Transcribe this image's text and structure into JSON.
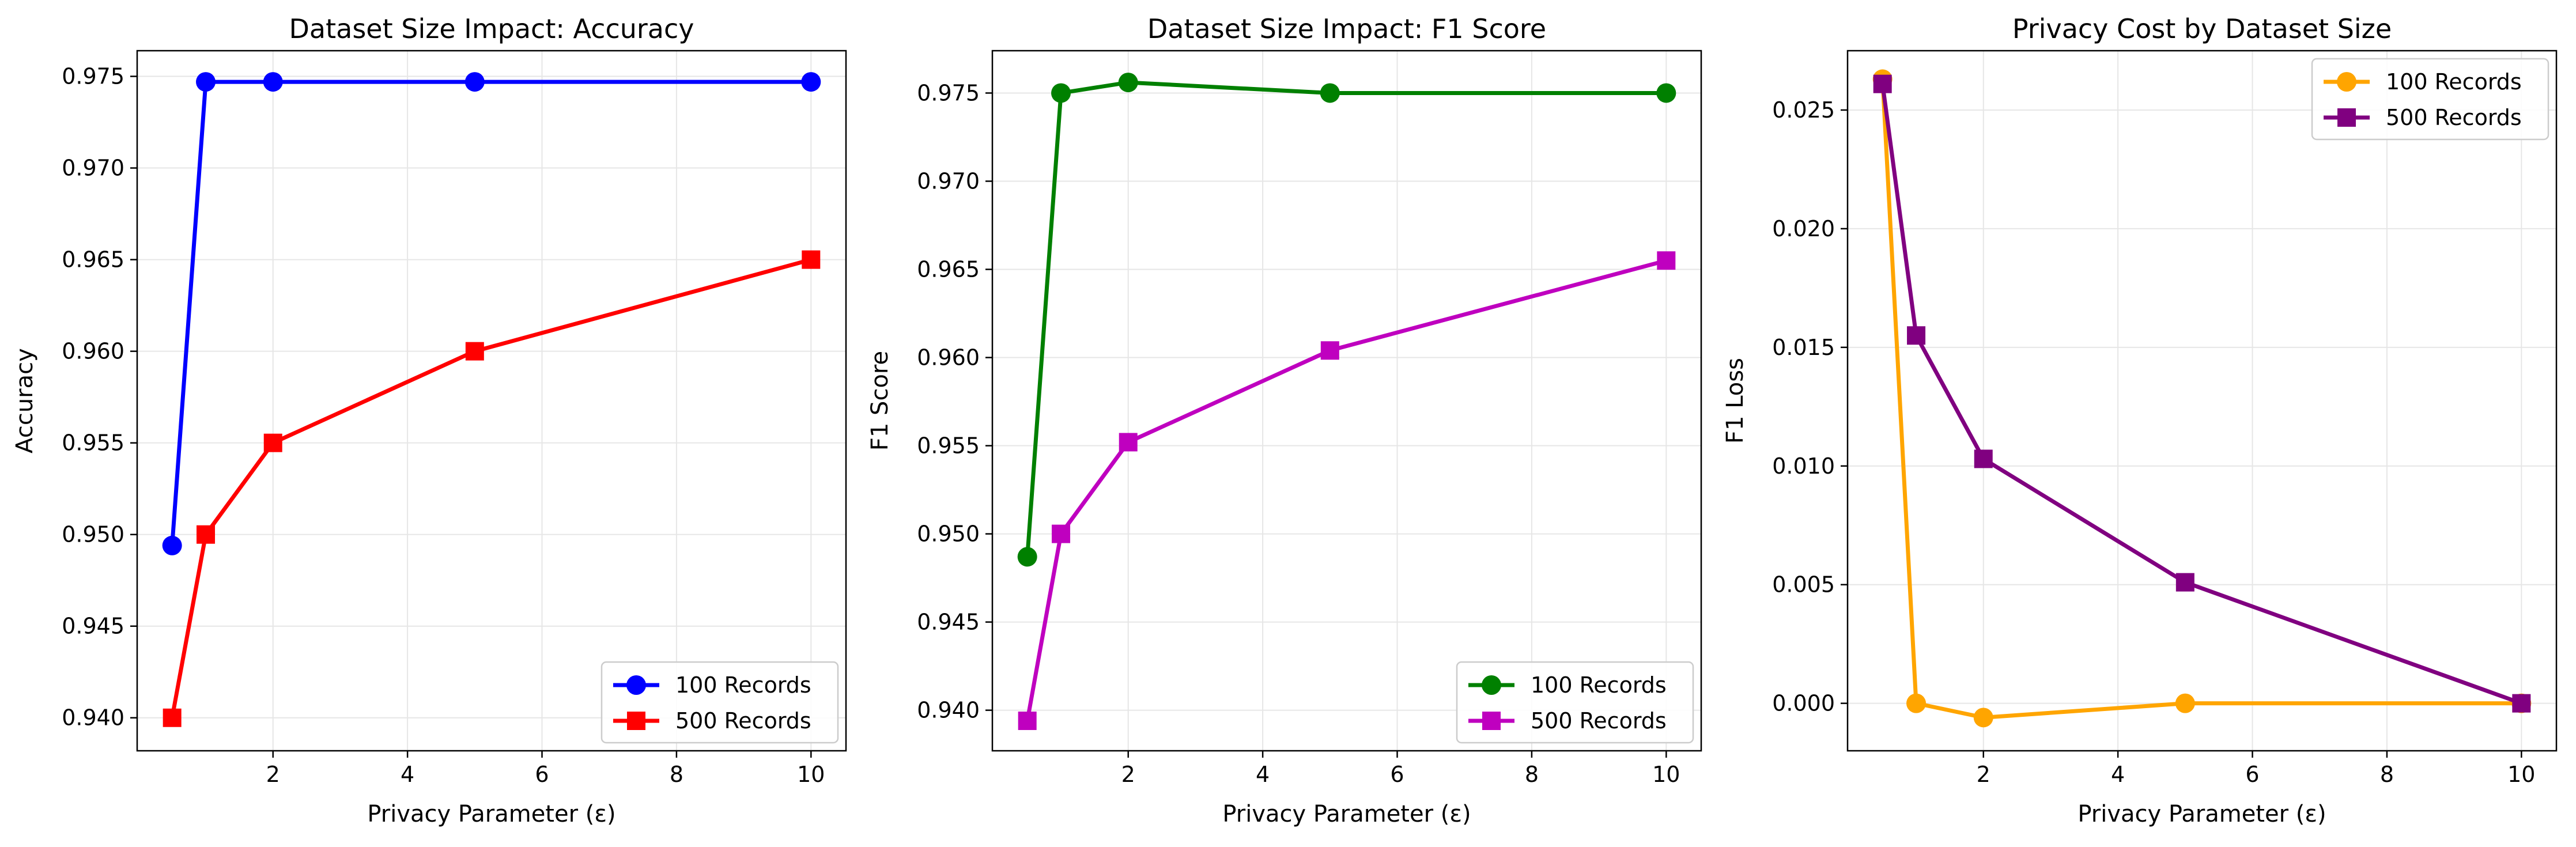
{
  "chart_data": [
    {
      "type": "line",
      "title": "Dataset Size Impact: Accuracy",
      "xlabel": "Privacy Parameter (ε)",
      "ylabel": "Accuracy",
      "xlim": [
        -0.02,
        10.52
      ],
      "ylim": [
        0.9382,
        0.9764
      ],
      "xticks": [
        2,
        4,
        6,
        8,
        10
      ],
      "yticks": [
        0.94,
        0.945,
        0.95,
        0.955,
        0.96,
        0.965,
        0.97,
        0.975
      ],
      "ytick_labels": [
        "0.940",
        "0.945",
        "0.950",
        "0.955",
        "0.960",
        "0.965",
        "0.970",
        "0.975"
      ],
      "grid": true,
      "legend": "lower-right",
      "x": [
        0.5,
        1,
        2,
        5,
        10
      ],
      "series": [
        {
          "name": "100 Records",
          "values": [
            0.9494,
            0.9747,
            0.9747,
            0.9747,
            0.9747
          ],
          "color": "#0000ff",
          "marker": "circle"
        },
        {
          "name": "500 Records",
          "values": [
            0.94,
            0.95,
            0.955,
            0.96,
            0.965
          ],
          "color": "#ff0000",
          "marker": "square"
        }
      ]
    },
    {
      "type": "line",
      "title": "Dataset Size Impact: F1 Score",
      "xlabel": "Privacy Parameter (ε)",
      "ylabel": "F1 Score",
      "xlim": [
        -0.02,
        10.52
      ],
      "ylim": [
        0.9377,
        0.9774
      ],
      "xticks": [
        2,
        4,
        6,
        8,
        10
      ],
      "yticks": [
        0.94,
        0.945,
        0.95,
        0.955,
        0.96,
        0.965,
        0.97,
        0.975
      ],
      "ytick_labels": [
        "0.940",
        "0.945",
        "0.950",
        "0.955",
        "0.960",
        "0.965",
        "0.970",
        "0.975"
      ],
      "grid": true,
      "legend": "lower-right",
      "x": [
        0.5,
        1,
        2,
        5,
        10
      ],
      "series": [
        {
          "name": "100 Records",
          "values": [
            0.9487,
            0.975,
            0.9756,
            0.975,
            0.975
          ],
          "color": "#008000",
          "marker": "circle"
        },
        {
          "name": "500 Records",
          "values": [
            0.9394,
            0.95,
            0.9552,
            0.9604,
            0.9655
          ],
          "color": "#bf00bf",
          "marker": "square"
        }
      ]
    },
    {
      "type": "line",
      "title": "Privacy Cost by Dataset Size",
      "xlabel": "Privacy Parameter (ε)",
      "ylabel": "F1 Loss",
      "xlim": [
        -0.02,
        10.52
      ],
      "ylim": [
        -0.002,
        0.0275
      ],
      "xticks": [
        2,
        4,
        6,
        8,
        10
      ],
      "yticks": [
        0.0,
        0.005,
        0.01,
        0.015,
        0.02,
        0.025
      ],
      "ytick_labels": [
        "0.000",
        "0.005",
        "0.010",
        "0.015",
        "0.020",
        "0.025"
      ],
      "grid": true,
      "legend": "top-right",
      "x": [
        0.5,
        1,
        2,
        5,
        10
      ],
      "series": [
        {
          "name": "100 Records",
          "values": [
            0.0263,
            0.0,
            -0.0006,
            0.0,
            0.0
          ],
          "color": "#ffa500",
          "marker": "circle"
        },
        {
          "name": "500 Records",
          "values": [
            0.0261,
            0.0155,
            0.0103,
            0.0051,
            0.0
          ],
          "color": "#800080",
          "marker": "square"
        }
      ]
    }
  ]
}
